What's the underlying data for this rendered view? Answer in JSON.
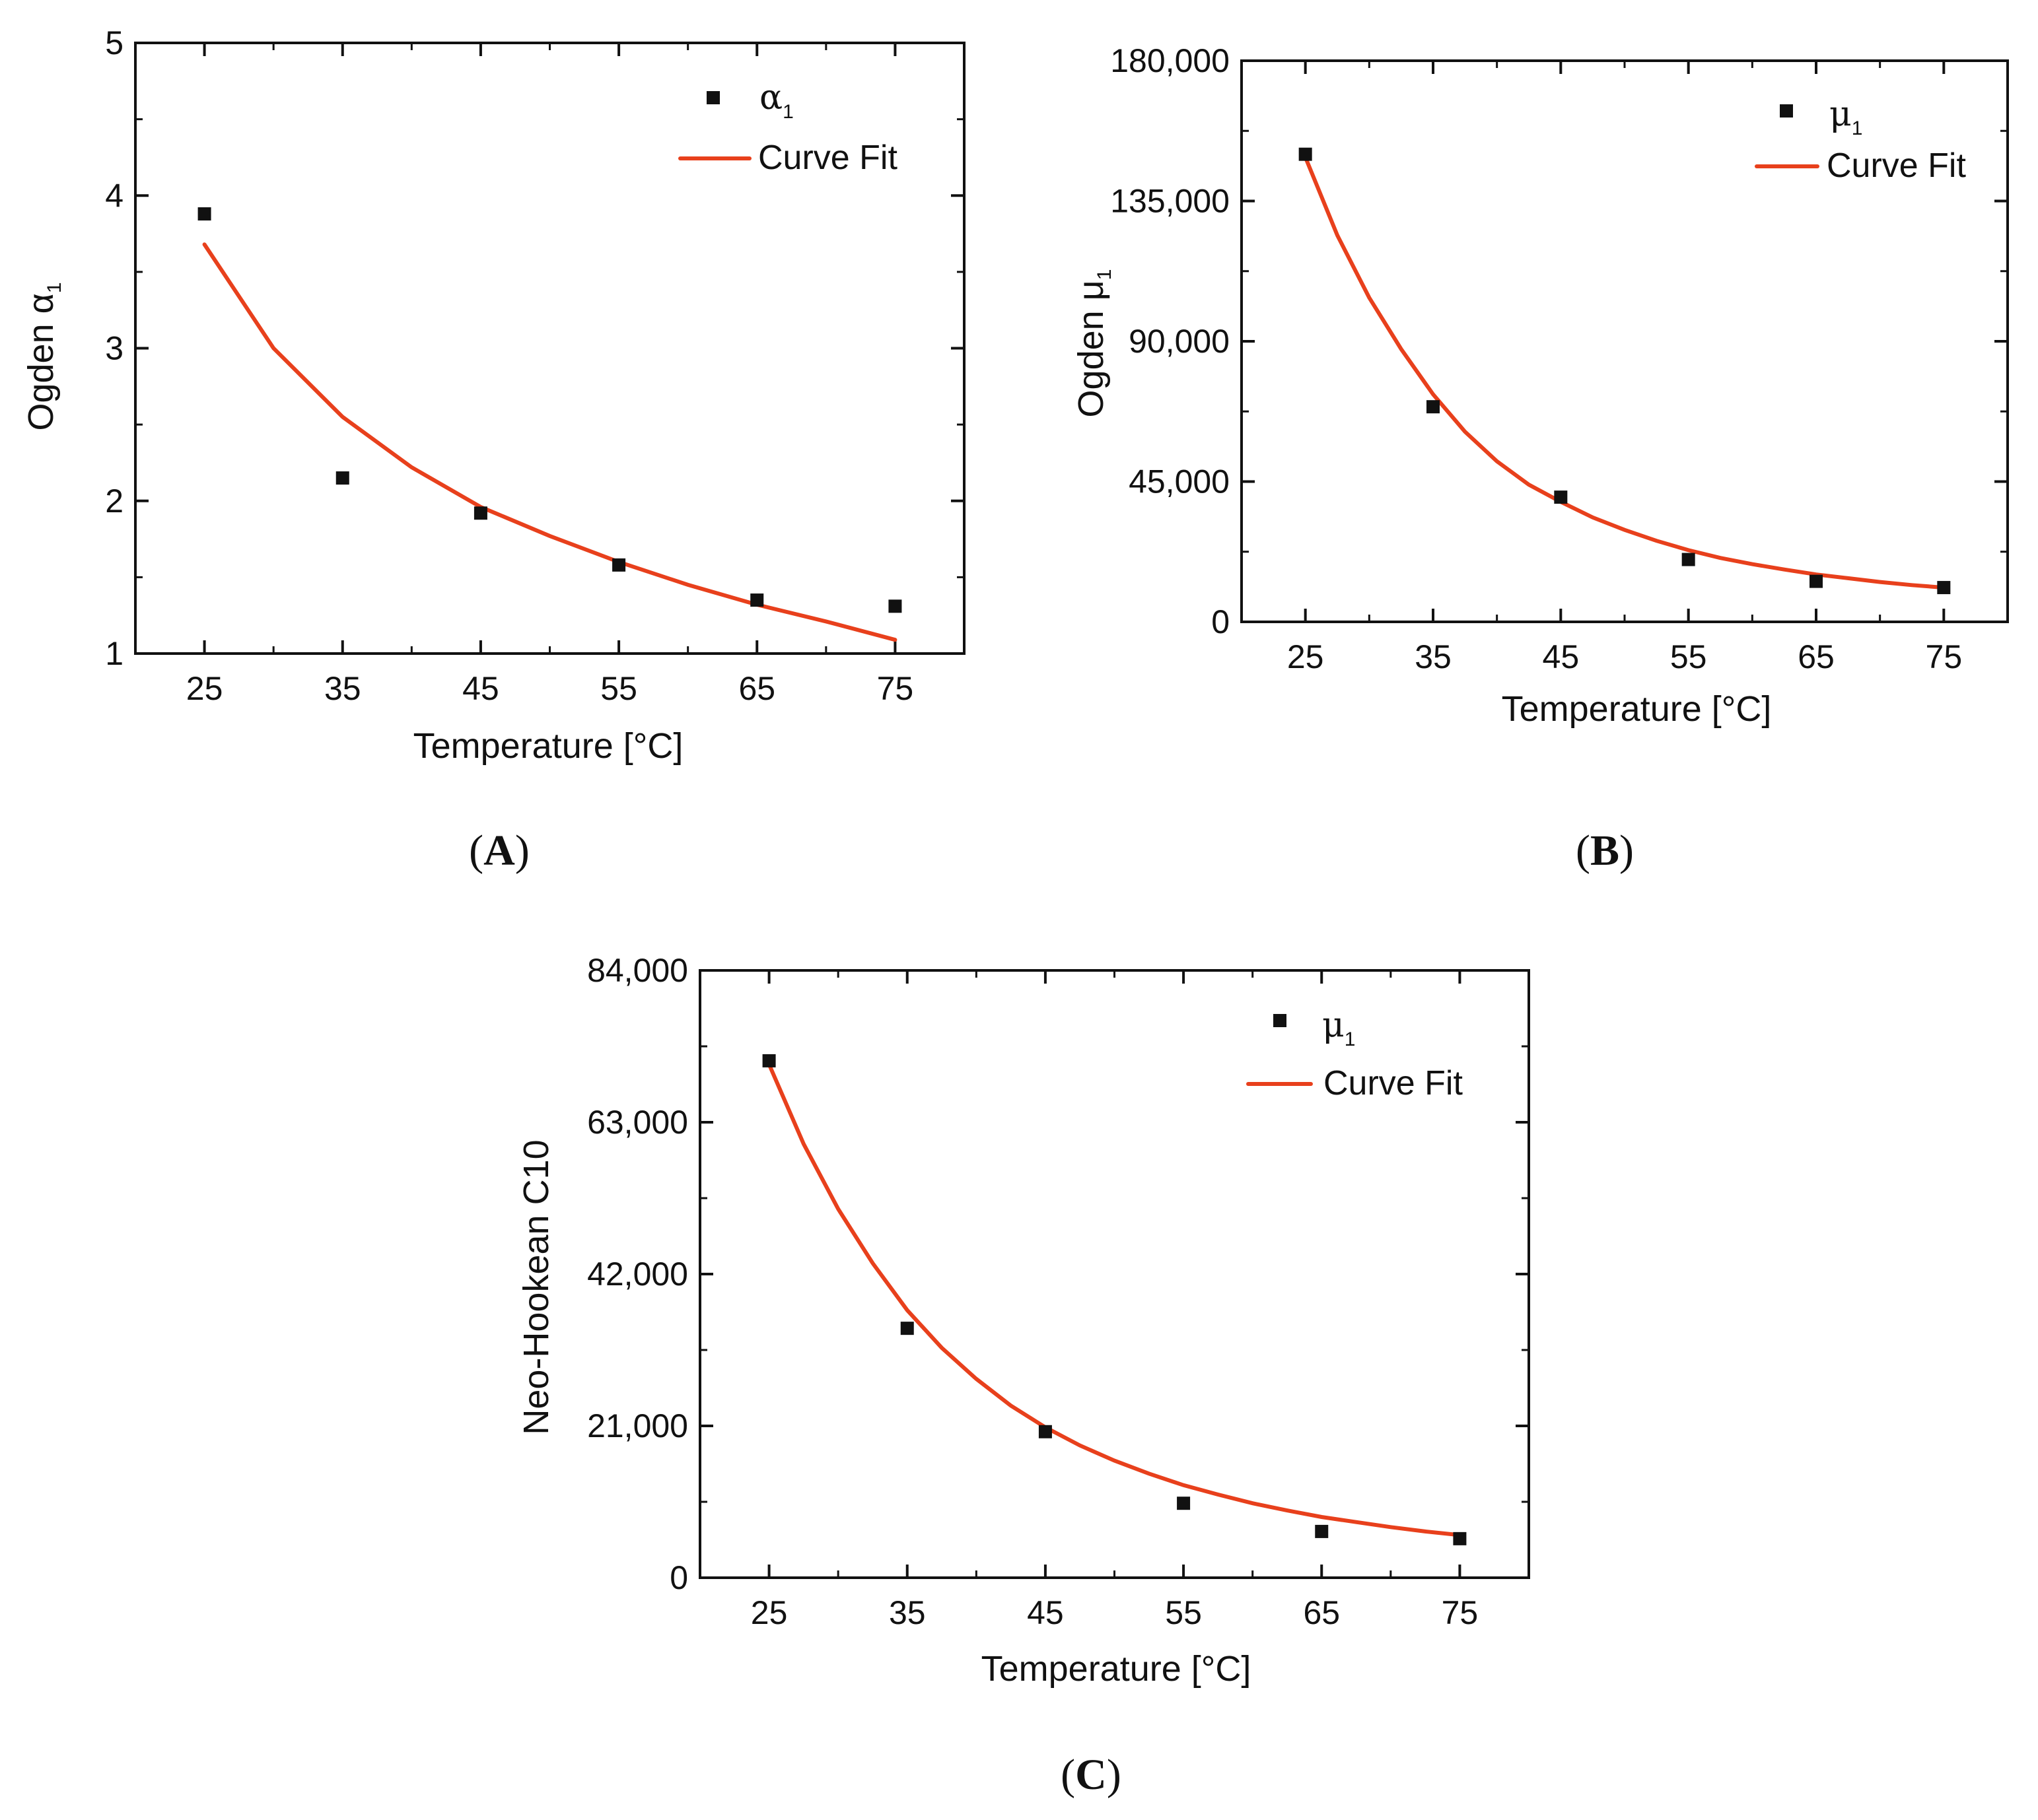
{
  "colors": {
    "fit": "#E8401C",
    "marker": "#111111"
  },
  "chart_data": [
    {
      "panel": "A",
      "type": "scatter",
      "title": "",
      "xlabel": "Temperature [°C]",
      "ylabel_main": "Ogden α",
      "ylabel_sub": "1",
      "xlim": [
        20,
        80
      ],
      "ylim": [
        1,
        5
      ],
      "xticks": [
        25,
        35,
        45,
        55,
        65,
        75
      ],
      "xtick_labels": [
        "25",
        "35",
        "45",
        "55",
        "65",
        "75"
      ],
      "yticks": [
        1,
        2,
        3,
        4,
        5
      ],
      "ytick_labels": [
        "1",
        "2",
        "3",
        "4",
        "5"
      ],
      "legend_position": "top-right",
      "legend": {
        "points_symbol": "α",
        "points_sub": "1",
        "fit_label": "Curve Fit"
      },
      "series": [
        {
          "name": "α1",
          "kind": "points",
          "x": [
            25,
            35,
            45,
            55,
            65,
            75
          ],
          "y": [
            3.88,
            2.15,
            1.92,
            1.58,
            1.35,
            1.31
          ]
        },
        {
          "name": "Curve Fit",
          "kind": "line",
          "x": [
            25,
            30,
            35,
            40,
            45,
            50,
            55,
            60,
            65,
            70,
            75
          ],
          "y": [
            3.68,
            3.0,
            2.55,
            2.22,
            1.96,
            1.77,
            1.6,
            1.45,
            1.32,
            1.21,
            1.09
          ]
        }
      ]
    },
    {
      "panel": "B",
      "type": "scatter",
      "title": "",
      "xlabel": "Temperature [°C]",
      "ylabel_main": "Ogden μ",
      "ylabel_sub": "1",
      "xlim": [
        20,
        80
      ],
      "ylim": [
        0,
        180000
      ],
      "xticks": [
        25,
        35,
        45,
        55,
        65,
        75
      ],
      "xtick_labels": [
        "25",
        "35",
        "45",
        "55",
        "65",
        "75"
      ],
      "yticks": [
        0,
        45000,
        90000,
        135000,
        180000
      ],
      "ytick_labels": [
        "0",
        "45,000",
        "90,000",
        "135,000",
        "180,000"
      ],
      "legend_position": "top-right",
      "legend": {
        "points_symbol": "μ",
        "points_sub": "1",
        "fit_label": "Curve Fit"
      },
      "series": [
        {
          "name": "μ1",
          "kind": "points",
          "x": [
            25,
            35,
            45,
            55,
            65,
            75
          ],
          "y": [
            150000,
            69000,
            40000,
            20000,
            13000,
            11000
          ]
        },
        {
          "name": "Curve Fit",
          "kind": "line",
          "x": [
            25,
            27.5,
            30,
            32.5,
            35,
            37.5,
            40,
            42.5,
            45,
            47.5,
            50,
            52.5,
            55,
            57.5,
            60,
            62.5,
            65,
            67.5,
            70,
            72.5,
            75
          ],
          "y": [
            149000,
            124000,
            104000,
            87500,
            73000,
            61000,
            51500,
            44000,
            38500,
            33500,
            29500,
            26000,
            23000,
            20500,
            18500,
            16800,
            15200,
            14000,
            12800,
            11800,
            11000
          ]
        }
      ]
    },
    {
      "panel": "C",
      "type": "scatter",
      "title": "",
      "xlabel": "Temperature [°C]",
      "ylabel_main": "Neo-Hookean C10",
      "ylabel_sub": "",
      "xlim": [
        20,
        80
      ],
      "ylim": [
        0,
        84000
      ],
      "xticks": [
        25,
        35,
        45,
        55,
        65,
        75
      ],
      "xtick_labels": [
        "25",
        "35",
        "45",
        "55",
        "65",
        "75"
      ],
      "yticks": [
        0,
        21000,
        42000,
        63000,
        84000
      ],
      "ytick_labels": [
        "0",
        "21,000",
        "42,000",
        "63,000",
        "84,000"
      ],
      "legend_position": "top-right",
      "legend": {
        "points_symbol": "μ",
        "points_sub": "1",
        "fit_label": "Curve Fit"
      },
      "series": [
        {
          "name": "μ1",
          "kind": "points",
          "x": [
            25,
            35,
            45,
            55,
            65,
            75
          ],
          "y": [
            71500,
            34500,
            20200,
            10300,
            6400,
            5400
          ]
        },
        {
          "name": "Curve Fit",
          "kind": "line",
          "x": [
            25,
            27.5,
            30,
            32.5,
            35,
            37.5,
            40,
            42.5,
            45,
            47.5,
            50,
            52.5,
            55,
            57.5,
            60,
            62.5,
            65,
            67.5,
            70,
            72.5,
            75
          ],
          "y": [
            71000,
            60000,
            51000,
            43500,
            37000,
            31800,
            27500,
            23800,
            20800,
            18300,
            16200,
            14400,
            12800,
            11500,
            10300,
            9300,
            8400,
            7700,
            7000,
            6400,
            5900
          ]
        }
      ]
    }
  ],
  "panel_labels": [
    {
      "open": "(",
      "letter": "A",
      "close": ")"
    },
    {
      "open": "(",
      "letter": "B",
      "close": ")"
    },
    {
      "open": "(",
      "letter": "C",
      "close": ")"
    }
  ]
}
